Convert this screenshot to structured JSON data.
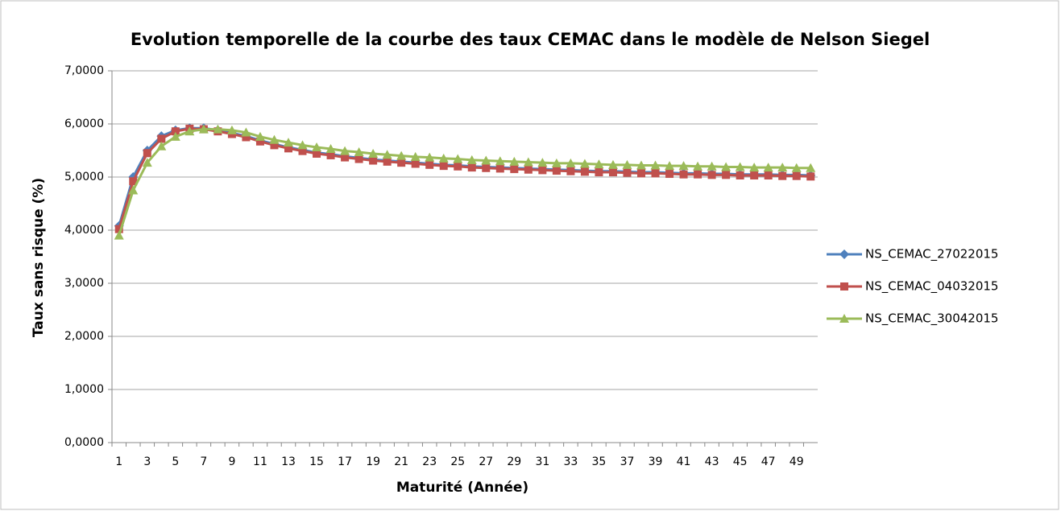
{
  "chart_data": {
    "type": "line",
    "title": "Evolution temporelle de la courbe des taux CEMAC dans le modèle de Nelson Siegel",
    "x_label": "Maturité (Année)",
    "y_label": "Taux sans risque (%)",
    "categories": [
      1,
      null,
      3,
      null,
      5,
      null,
      7,
      null,
      9,
      null,
      11,
      null,
      13,
      null,
      15,
      null,
      17,
      null,
      19,
      null,
      21,
      null,
      23,
      null,
      25,
      null,
      27,
      null,
      29,
      null,
      31,
      null,
      33,
      null,
      35,
      null,
      37,
      null,
      39,
      null,
      41,
      null,
      43,
      null,
      45,
      null,
      47,
      null,
      49,
      null
    ],
    "ylim": [
      0,
      7
    ],
    "yticks": [
      {
        "value": 0,
        "label": "0,0000"
      },
      {
        "value": 1,
        "label": "1,0000"
      },
      {
        "value": 2,
        "label": "2,0000"
      },
      {
        "value": 3,
        "label": "3,0000"
      },
      {
        "value": 4,
        "label": "4,0000"
      },
      {
        "value": 5,
        "label": "5,0000"
      },
      {
        "value": 6,
        "label": "6,0000"
      },
      {
        "value": 7,
        "label": "7,0000"
      }
    ],
    "grid": true,
    "legend": "right",
    "series": [
      {
        "name": "NS_CEMAC_27022015",
        "color": "#4f81bd",
        "marker": "diamond",
        "values": [
          4.08,
          5.0,
          5.5,
          5.77,
          5.88,
          5.92,
          5.92,
          5.88,
          5.83,
          5.77,
          5.69,
          5.62,
          5.56,
          5.51,
          5.46,
          5.43,
          5.39,
          5.36,
          5.33,
          5.31,
          5.29,
          5.27,
          5.25,
          5.23,
          5.22,
          5.2,
          5.19,
          5.18,
          5.17,
          5.16,
          5.15,
          5.14,
          5.13,
          5.12,
          5.11,
          5.11,
          5.1,
          5.09,
          5.09,
          5.08,
          5.07,
          5.07,
          5.06,
          5.06,
          5.05,
          5.05,
          5.05,
          5.04,
          5.04,
          5.03
        ]
      },
      {
        "name": "NS_CEMAC_04032015",
        "color": "#c0504d",
        "marker": "square",
        "values": [
          4.02,
          4.92,
          5.45,
          5.72,
          5.86,
          5.91,
          5.9,
          5.86,
          5.81,
          5.75,
          5.67,
          5.6,
          5.54,
          5.49,
          5.44,
          5.41,
          5.37,
          5.34,
          5.31,
          5.29,
          5.27,
          5.25,
          5.23,
          5.21,
          5.2,
          5.18,
          5.17,
          5.16,
          5.15,
          5.14,
          5.13,
          5.12,
          5.11,
          5.1,
          5.09,
          5.09,
          5.08,
          5.07,
          5.07,
          5.06,
          5.05,
          5.05,
          5.04,
          5.04,
          5.03,
          5.03,
          5.03,
          5.02,
          5.02,
          5.01
        ]
      },
      {
        "name": "NS_CEMAC_30042015",
        "color": "#9bbb59",
        "marker": "triangle",
        "values": [
          3.9,
          4.75,
          5.27,
          5.58,
          5.76,
          5.86,
          5.9,
          5.9,
          5.88,
          5.84,
          5.76,
          5.7,
          5.65,
          5.6,
          5.56,
          5.53,
          5.49,
          5.47,
          5.44,
          5.42,
          5.4,
          5.38,
          5.37,
          5.35,
          5.34,
          5.32,
          5.31,
          5.3,
          5.29,
          5.28,
          5.27,
          5.26,
          5.26,
          5.25,
          5.24,
          5.23,
          5.23,
          5.22,
          5.22,
          5.21,
          5.21,
          5.2,
          5.2,
          5.19,
          5.19,
          5.18,
          5.18,
          5.18,
          5.17,
          5.17
        ]
      }
    ]
  }
}
